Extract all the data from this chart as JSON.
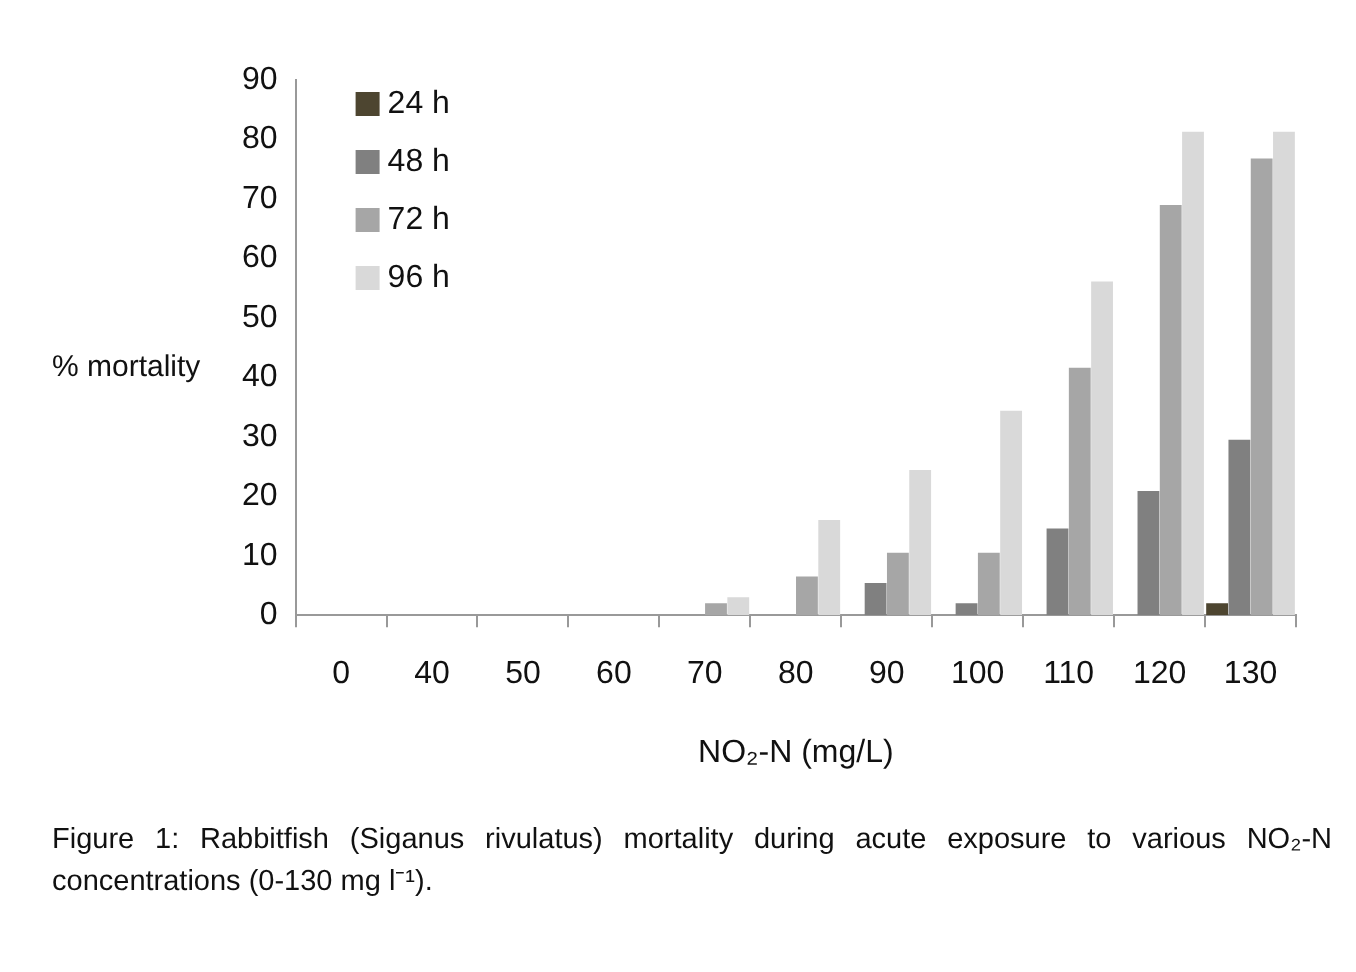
{
  "chart_data": {
    "type": "bar",
    "ylabel": "% mortality",
    "xlabel": "NO₂-N (mg/L)",
    "categories": [
      "0",
      "40",
      "50",
      "60",
      "70",
      "80",
      "90",
      "100",
      "110",
      "120",
      "130"
    ],
    "series": [
      {
        "name": "24 h",
        "color": "#4d4530",
        "values": [
          0,
          0,
          0,
          0,
          0,
          0,
          0,
          0,
          0,
          0,
          2
        ]
      },
      {
        "name": "48 h",
        "color": "#808080",
        "values": [
          0,
          0,
          0,
          0,
          0,
          0,
          5.4,
          2,
          14.6,
          20.9,
          29.5
        ]
      },
      {
        "name": "72 h",
        "color": "#a6a6a6",
        "values": [
          0,
          0,
          0,
          0,
          2,
          6.5,
          10.5,
          10.5,
          41.6,
          69,
          76.8
        ]
      },
      {
        "name": "96 h",
        "color": "#d9d9d9",
        "values": [
          0,
          0,
          0,
          0,
          3,
          16,
          24.4,
          34.4,
          56.1,
          81.3,
          81.3
        ]
      }
    ],
    "ylim": [
      0,
      90
    ],
    "yticks": [
      0,
      10,
      20,
      30,
      40,
      50,
      60,
      70,
      80,
      90
    ],
    "grid": false,
    "legend": "top left",
    "annotations": [
      "Figure 1: Rabbitfish (Siganus rivulatus) mortality during acute exposure to various NO₂-N concentrations (0-130 mg l⁻¹)."
    ]
  }
}
